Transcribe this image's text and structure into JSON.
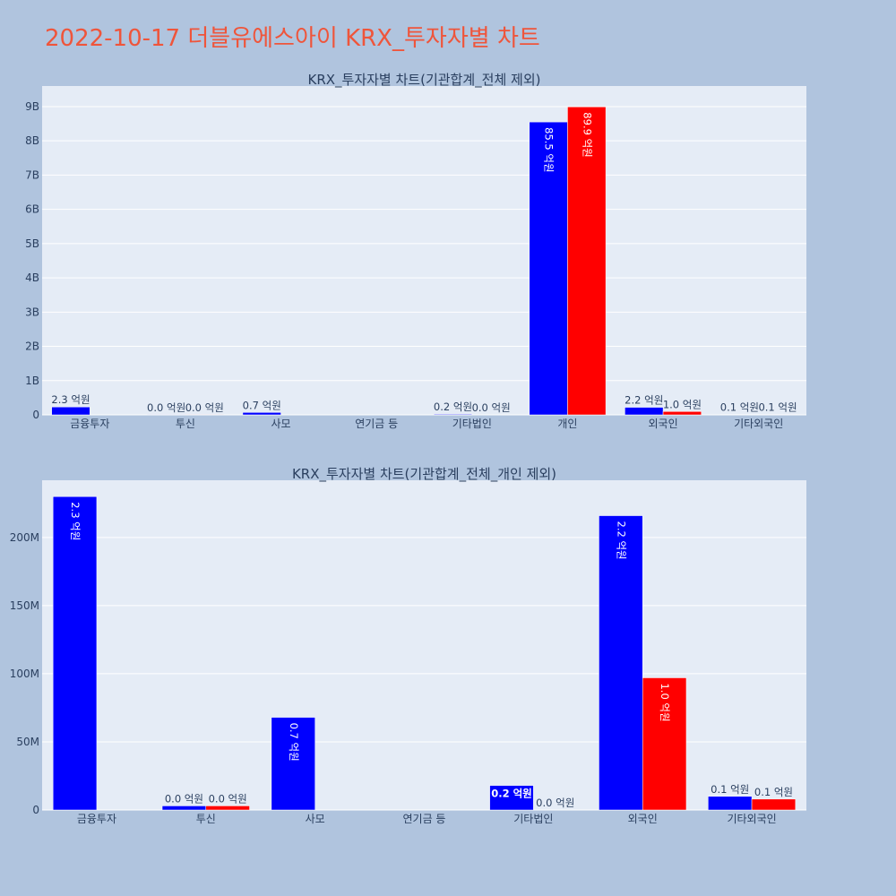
{
  "page": {
    "title": "2022-10-17 더블유에스아이 KRX_투자자별 차트",
    "title_color": "#ef553b",
    "background": "#b0c4de"
  },
  "colors": {
    "plot_bg": "#e5ecf6",
    "grid": "#ffffff",
    "series_a": "#0000ff",
    "series_b": "#ff0000",
    "axis_text": "#2a3f5f"
  },
  "chart_data": [
    {
      "type": "bar",
      "title": "KRX_투자자별 차트(기관합계_전체 제외)",
      "categories": [
        "금융투자",
        "투신",
        "사모",
        "연기금 등",
        "기타법인",
        "개인",
        "외국인",
        "기타외국인"
      ],
      "series": [
        {
          "color": "#0000ff",
          "values": [
            230000000,
            2000000,
            70000000,
            0,
            20000000,
            8550000000,
            220000000,
            10000000
          ],
          "labels": [
            "2.3 억원",
            "0.0 억원",
            "0.7 억원",
            "",
            "0.2 억원",
            "85.5 억원",
            "2.2 억원",
            "0.1 억원"
          ]
        },
        {
          "color": "#ff0000",
          "values": [
            0,
            2000000,
            0,
            0,
            0,
            8990000000,
            97000000,
            8000000
          ],
          "labels": [
            "",
            "0.0 억원",
            "",
            "",
            "0.0 억원",
            "89.9 억원",
            "1.0 억원",
            "0.1 억원"
          ]
        }
      ],
      "yticks": [
        0,
        1000000000,
        2000000000,
        3000000000,
        4000000000,
        5000000000,
        6000000000,
        7000000000,
        8000000000,
        9000000000
      ],
      "ytick_labels": [
        "0",
        "1B",
        "2B",
        "3B",
        "4B",
        "5B",
        "6B",
        "7B",
        "8B",
        "9B"
      ],
      "ylim": [
        0,
        9600000000
      ],
      "grid": true
    },
    {
      "type": "bar",
      "title": "KRX_투자자별 차트(기관합계_전체_개인 제외)",
      "categories": [
        "금융투자",
        "투신",
        "사모",
        "연기금 등",
        "기타법인",
        "외국인",
        "기타외국인"
      ],
      "series": [
        {
          "color": "#0000ff",
          "values": [
            230000000,
            3000000,
            68000000,
            0,
            18000000,
            216000000,
            10000000
          ],
          "labels": [
            "2.3 억원",
            "0.0 억원",
            "0.7 억원",
            "",
            "0.2 억원",
            "2.2 억원",
            "0.1 억원"
          ]
        },
        {
          "color": "#ff0000",
          "values": [
            0,
            3000000,
            0,
            0,
            0,
            97000000,
            8000000
          ],
          "labels": [
            "",
            "0.0 억원",
            "",
            "",
            "0.0 억원",
            "1.0 억원",
            "0.1 억원"
          ]
        }
      ],
      "yticks": [
        0,
        50000000,
        100000000,
        150000000,
        200000000
      ],
      "ytick_labels": [
        "0",
        "50M",
        "100M",
        "150M",
        "200M"
      ],
      "ylim": [
        0,
        242000000
      ],
      "grid": true
    }
  ]
}
